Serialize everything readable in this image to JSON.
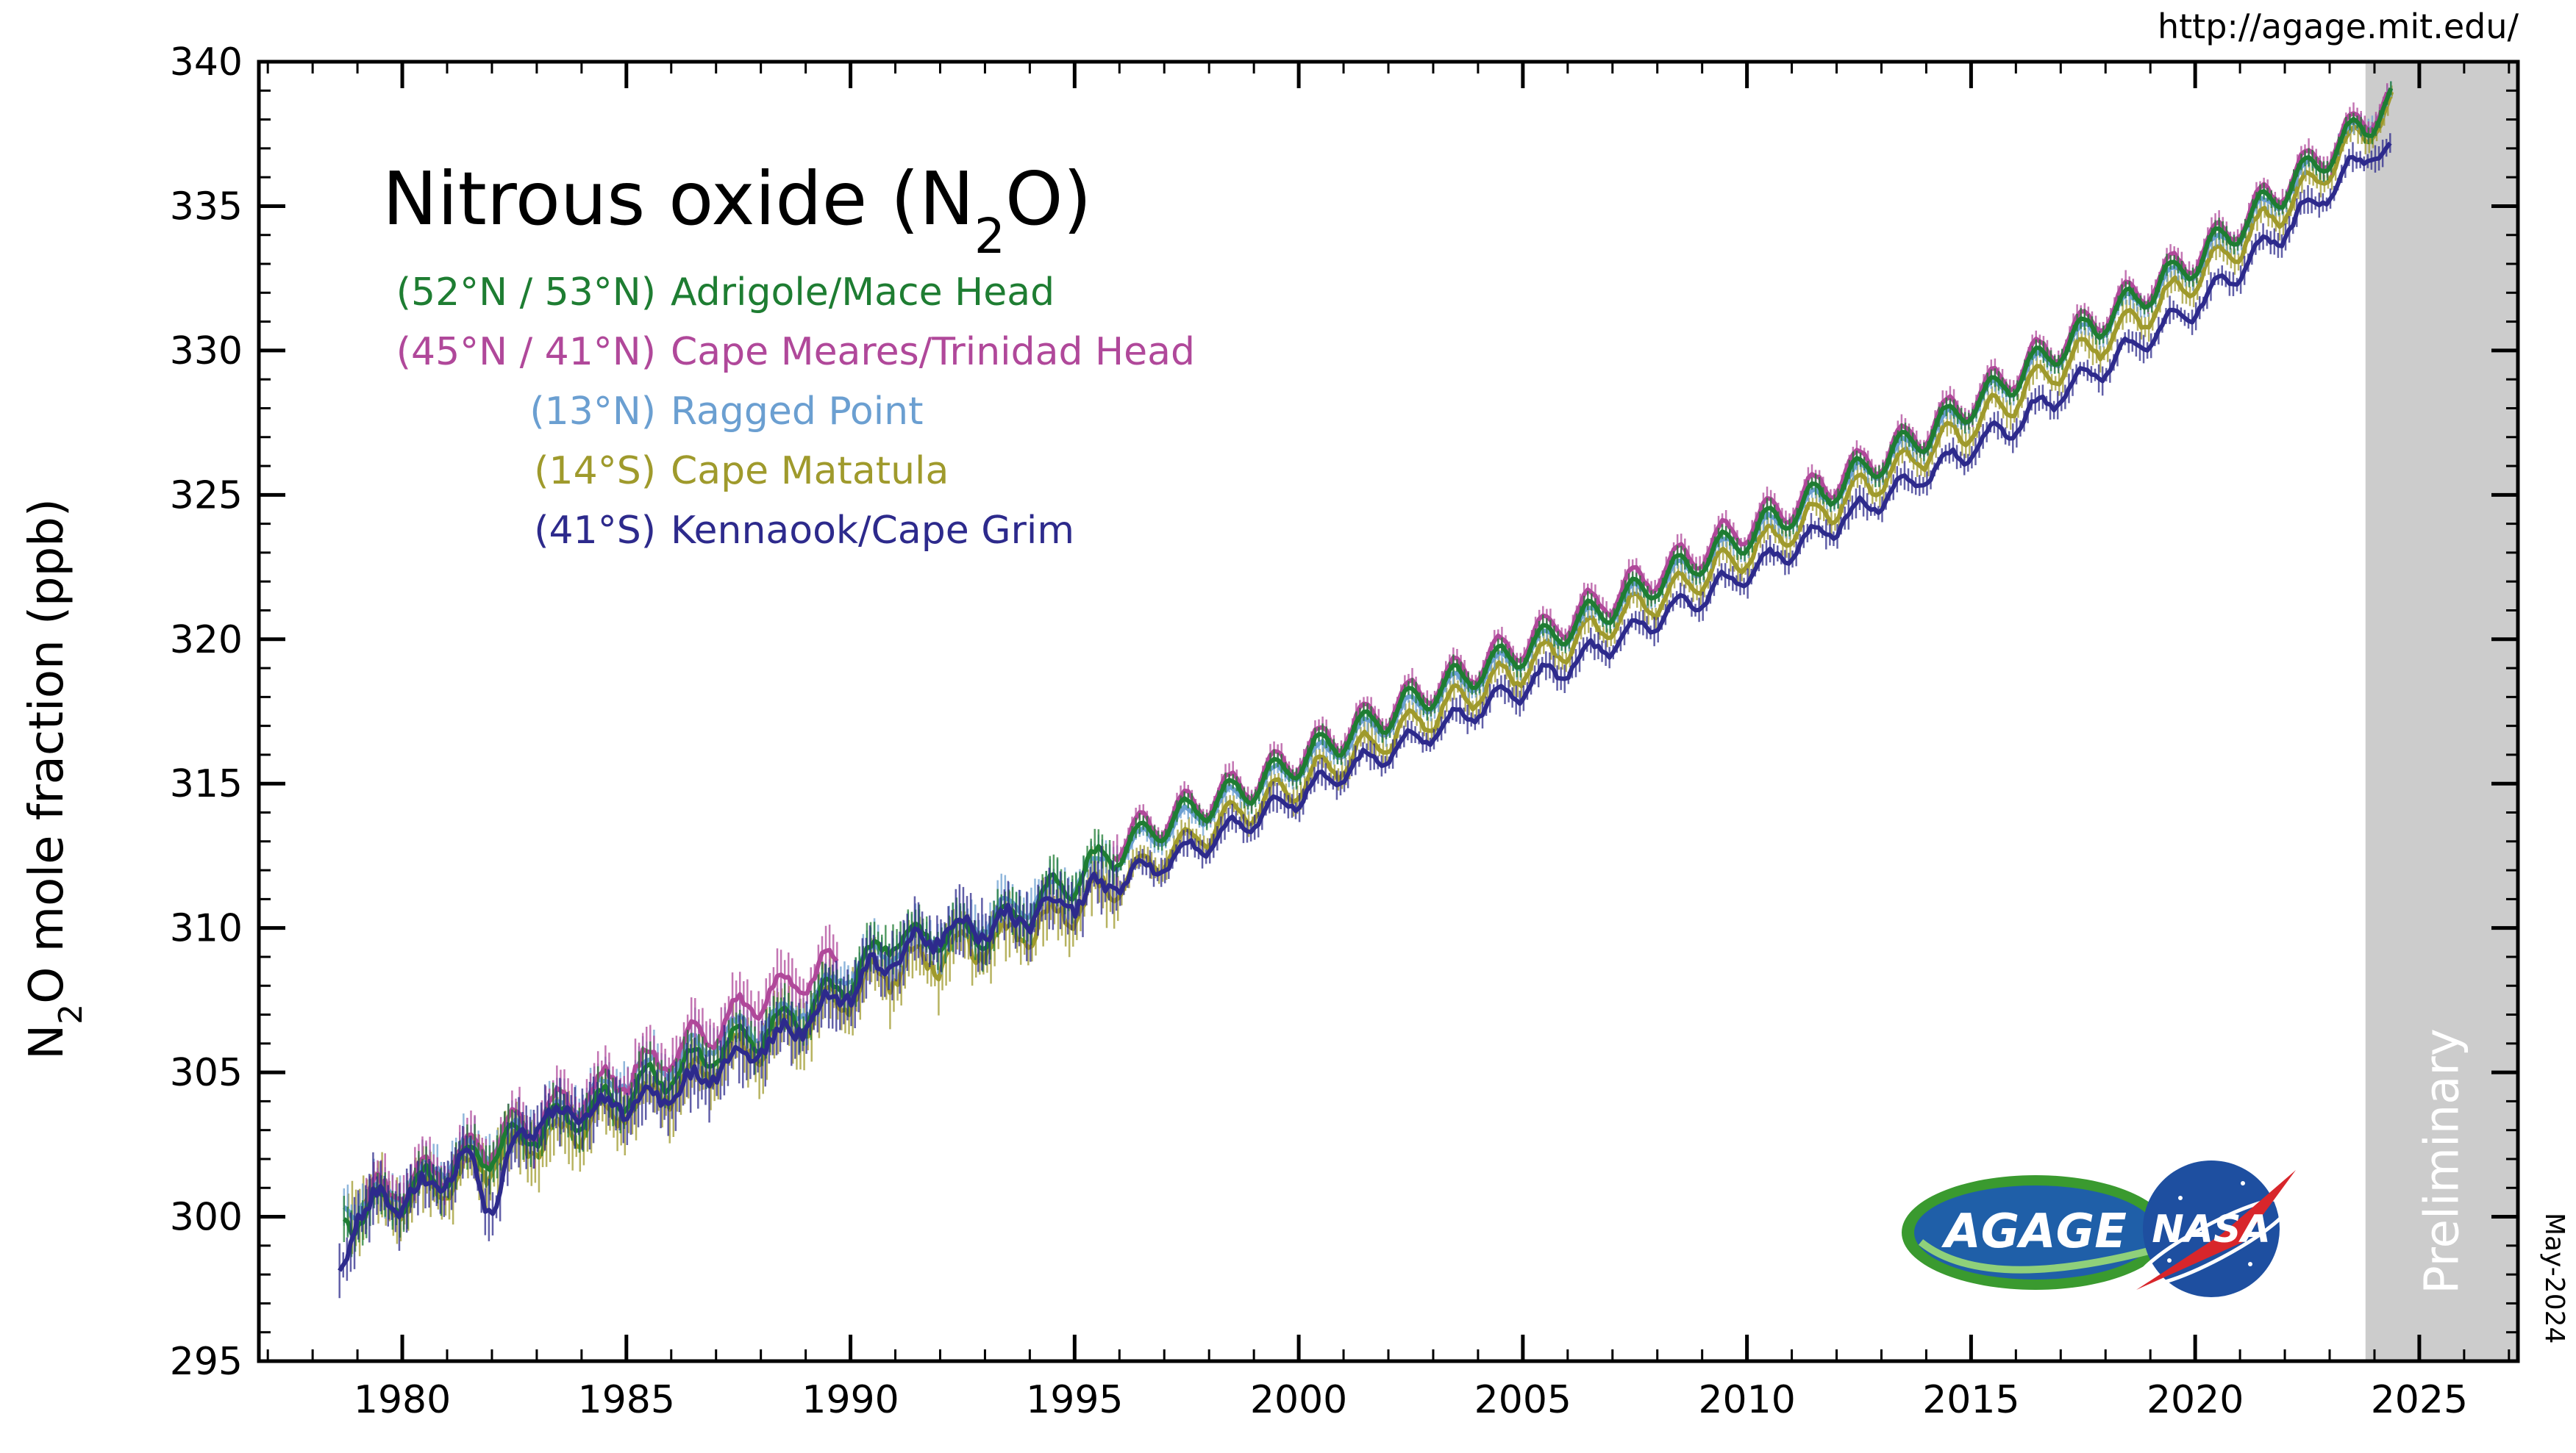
{
  "chart_data": {
    "type": "line",
    "title_main": "Nitrous oxide (N",
    "title_sub": "2",
    "title_end": "O)",
    "ylabel_main": "N",
    "ylabel_sub": "2",
    "ylabel_end": "O mole fraction (ppb)",
    "xlim": [
      1976.8,
      2027.2
    ],
    "ylim": [
      295,
      340
    ],
    "xticks": [
      1980,
      1985,
      1990,
      1995,
      2000,
      2005,
      2010,
      2015,
      2020,
      2025
    ],
    "yticks": [
      295,
      300,
      305,
      310,
      315,
      320,
      325,
      330,
      335,
      340
    ],
    "preliminary_region": {
      "start": 2023.8,
      "end": 2027.2,
      "label": "Preliminary"
    },
    "url": "http://agage.mit.edu/",
    "date_stamp": "May-2024",
    "series": [
      {
        "name": "Adrigole/Mace Head",
        "lat": "(52°N / 53°N)",
        "color": "#1e7d32",
        "start": 1978.7,
        "end": 2024.4,
        "knots": [
          [
            1978.7,
            299.9
          ],
          [
            1980,
            300.7
          ],
          [
            1981,
            301.6
          ],
          [
            1982,
            302.3
          ],
          [
            1983,
            303.0
          ],
          [
            1984,
            303.6
          ],
          [
            1985,
            304.3
          ],
          [
            1986,
            305.0
          ],
          [
            1987,
            305.7
          ],
          [
            1988,
            306.4
          ],
          [
            1989,
            307.1
          ],
          [
            1990,
            308.2
          ],
          [
            1991,
            309.8
          ],
          [
            1992,
            309.6
          ],
          [
            1993,
            309.9
          ],
          [
            1994,
            310.7
          ],
          [
            1995,
            311.7
          ],
          [
            1996,
            312.7
          ],
          [
            1997,
            313.6
          ],
          [
            1998,
            314.3
          ],
          [
            1999,
            314.9
          ],
          [
            2000,
            315.8
          ],
          [
            2001,
            316.6
          ],
          [
            2002,
            317.4
          ],
          [
            2003,
            318.2
          ],
          [
            2004,
            318.9
          ],
          [
            2005,
            319.6
          ],
          [
            2006,
            320.4
          ],
          [
            2007,
            321.2
          ],
          [
            2008,
            322.0
          ],
          [
            2009,
            322.8
          ],
          [
            2010,
            323.6
          ],
          [
            2011,
            324.4
          ],
          [
            2012,
            325.3
          ],
          [
            2013,
            326.2
          ],
          [
            2014,
            327.1
          ],
          [
            2015,
            328.1
          ],
          [
            2016,
            329.1
          ],
          [
            2017,
            330.1
          ],
          [
            2018,
            331.1
          ],
          [
            2019,
            332.1
          ],
          [
            2020,
            333.1
          ],
          [
            2021,
            334.3
          ],
          [
            2022,
            335.6
          ],
          [
            2023,
            336.8
          ],
          [
            2024,
            338.1
          ],
          [
            2024.4,
            338.6
          ]
        ],
        "amp": 0.55,
        "noise": 0.5
      },
      {
        "name": "Cape Meares/Trinidad Head",
        "lat": "(45°N / 41°N)",
        "color": "#b0489a",
        "start": 1979.2,
        "end": 2024.3,
        "knots": [
          [
            1979.2,
            300.6
          ],
          [
            1980,
            301.1
          ],
          [
            1981,
            301.8
          ],
          [
            1982,
            302.6
          ],
          [
            1983,
            303.4
          ],
          [
            1984,
            304.1
          ],
          [
            1985,
            304.9
          ],
          [
            1986,
            305.6
          ],
          [
            1987,
            306.6
          ],
          [
            1988,
            307.6
          ],
          [
            1989,
            308.2
          ],
          [
            1989.6,
            308.6
          ],
          [
            1995.9,
            312.9
          ],
          [
            1997,
            313.8
          ],
          [
            1998,
            314.5
          ],
          [
            1999,
            315.1
          ],
          [
            2000,
            316.0
          ],
          [
            2001,
            316.8
          ],
          [
            2002,
            317.6
          ],
          [
            2003,
            318.4
          ],
          [
            2004,
            319.1
          ],
          [
            2005,
            319.9
          ],
          [
            2006,
            320.7
          ],
          [
            2007,
            321.5
          ],
          [
            2008,
            322.3
          ],
          [
            2009,
            323.1
          ],
          [
            2010,
            323.9
          ],
          [
            2011,
            324.7
          ],
          [
            2012,
            325.6
          ],
          [
            2013,
            326.4
          ],
          [
            2014,
            327.3
          ],
          [
            2015,
            328.3
          ],
          [
            2016,
            329.3
          ],
          [
            2017,
            330.3
          ],
          [
            2018,
            331.3
          ],
          [
            2019,
            332.3
          ],
          [
            2020,
            333.3
          ],
          [
            2021,
            334.5
          ],
          [
            2022,
            335.8
          ],
          [
            2023,
            337.0
          ],
          [
            2024,
            338.3
          ],
          [
            2024.3,
            338.7
          ]
        ],
        "gap": [
          1989.7,
          1995.8
        ],
        "amp": 0.6,
        "noise": 0.6
      },
      {
        "name": "Ragged Point",
        "lat": "(13°N)",
        "color": "#6b9fd1",
        "start": 1978.7,
        "end": 2024.4,
        "knots": [
          [
            1978.7,
            300.3
          ],
          [
            1980,
            300.9
          ],
          [
            1981,
            302.0
          ],
          [
            1982,
            302.5
          ],
          [
            1983,
            303.2
          ],
          [
            1984,
            304.0
          ],
          [
            1985,
            304.9
          ],
          [
            1986,
            305.4
          ],
          [
            1987,
            306.1
          ],
          [
            1988,
            306.7
          ],
          [
            1989,
            307.3
          ],
          [
            1990,
            308.5
          ],
          [
            1991,
            309.3
          ],
          [
            1992,
            309.7
          ],
          [
            1993,
            310.2
          ],
          [
            1994,
            310.9
          ],
          [
            1995,
            311.6
          ],
          [
            1996,
            312.6
          ],
          [
            1997,
            313.4
          ],
          [
            1998,
            314.1
          ],
          [
            1999,
            314.8
          ],
          [
            2000,
            315.6
          ],
          [
            2001,
            316.4
          ],
          [
            2002,
            317.2
          ],
          [
            2003,
            318.0
          ],
          [
            2004,
            318.7
          ],
          [
            2005,
            319.5
          ],
          [
            2006,
            320.3
          ],
          [
            2007,
            321.1
          ],
          [
            2008,
            321.9
          ],
          [
            2009,
            322.7
          ],
          [
            2010,
            323.5
          ],
          [
            2011,
            324.3
          ],
          [
            2012,
            325.2
          ],
          [
            2013,
            326.1
          ],
          [
            2014,
            327.0
          ],
          [
            2015,
            328.0
          ],
          [
            2016,
            329.0
          ],
          [
            2017,
            330.0
          ],
          [
            2018,
            331.0
          ],
          [
            2019,
            332.0
          ],
          [
            2020,
            333.0
          ],
          [
            2021,
            334.2
          ],
          [
            2022,
            335.5
          ],
          [
            2023,
            336.8
          ],
          [
            2024,
            338.2
          ],
          [
            2024.4,
            338.7
          ]
        ],
        "amp": 0.45,
        "noise": 0.6
      },
      {
        "name": "Cape Matatula",
        "lat": "(14°S)",
        "color": "#9f9a2c",
        "start": 1978.8,
        "end": 2024.4,
        "knots": [
          [
            1978.8,
            300.4
          ],
          [
            1980,
            300.5
          ],
          [
            1981,
            301.1
          ],
          [
            1982,
            302.0
          ],
          [
            1983,
            302.7
          ],
          [
            1984,
            303.1
          ],
          [
            1985,
            303.8
          ],
          [
            1986,
            304.5
          ],
          [
            1987,
            305.3
          ],
          [
            1988,
            306.0
          ],
          [
            1989,
            306.8
          ],
          [
            1990,
            307.8
          ],
          [
            1991,
            308.6
          ],
          [
            1992,
            309.0
          ],
          [
            1993,
            309.4
          ],
          [
            1994,
            310.0
          ],
          [
            1995,
            310.8
          ],
          [
            1996,
            311.6
          ],
          [
            1997,
            312.5
          ],
          [
            1998,
            313.4
          ],
          [
            1999,
            314.2
          ],
          [
            2000,
            315.0
          ],
          [
            2001,
            315.8
          ],
          [
            2002,
            316.6
          ],
          [
            2003,
            317.4
          ],
          [
            2004,
            318.2
          ],
          [
            2005,
            319.0
          ],
          [
            2006,
            319.8
          ],
          [
            2007,
            320.6
          ],
          [
            2008,
            321.4
          ],
          [
            2009,
            322.2
          ],
          [
            2010,
            323.0
          ],
          [
            2011,
            323.8
          ],
          [
            2012,
            324.7
          ],
          [
            2013,
            325.6
          ],
          [
            2014,
            326.5
          ],
          [
            2015,
            327.4
          ],
          [
            2016,
            328.4
          ],
          [
            2017,
            329.4
          ],
          [
            2018,
            330.4
          ],
          [
            2019,
            331.4
          ],
          [
            2020,
            332.5
          ],
          [
            2021,
            333.7
          ],
          [
            2022,
            335.0
          ],
          [
            2023,
            336.4
          ],
          [
            2024,
            337.9
          ],
          [
            2024.4,
            338.4
          ]
        ],
        "amp": 0.55,
        "noise": 0.9
      },
      {
        "name": "Kennaook/Cape Grim",
        "lat": "(41°S)",
        "color": "#2d2a8c",
        "start": 1978.6,
        "end": 2024.4,
        "knots": [
          [
            1978.6,
            297.8
          ],
          [
            1979,
            300.3
          ],
          [
            1980,
            300.6
          ],
          [
            1981,
            301.4
          ],
          [
            1981.5,
            302.1
          ],
          [
            1982,
            300.2
          ],
          [
            1982.5,
            302.6
          ],
          [
            1983,
            303.3
          ],
          [
            1984,
            303.6
          ],
          [
            1985,
            304.0
          ],
          [
            1986,
            304.3
          ],
          [
            1987,
            305.1
          ],
          [
            1988,
            305.9
          ],
          [
            1989,
            306.7
          ],
          [
            1990,
            307.9
          ],
          [
            1991,
            309.1
          ],
          [
            1992,
            309.8
          ],
          [
            1993,
            310.0
          ],
          [
            1994,
            310.4
          ],
          [
            1995,
            311.0
          ],
          [
            1996,
            311.6
          ],
          [
            1997,
            312.3
          ],
          [
            1998,
            313.0
          ],
          [
            1999,
            313.8
          ],
          [
            2000,
            314.6
          ],
          [
            2001,
            315.4
          ],
          [
            2002,
            316.1
          ],
          [
            2003,
            316.8
          ],
          [
            2004,
            317.6
          ],
          [
            2005,
            318.3
          ],
          [
            2006,
            319.1
          ],
          [
            2007,
            319.9
          ],
          [
            2008,
            320.7
          ],
          [
            2009,
            321.5
          ],
          [
            2010,
            322.3
          ],
          [
            2011,
            323.1
          ],
          [
            2012,
            324.0
          ],
          [
            2013,
            324.9
          ],
          [
            2014,
            325.7
          ],
          [
            2015,
            326.6
          ],
          [
            2016,
            327.5
          ],
          [
            2017,
            328.5
          ],
          [
            2018,
            329.5
          ],
          [
            2019,
            330.5
          ],
          [
            2020,
            331.5
          ],
          [
            2021,
            332.8
          ],
          [
            2022,
            334.2
          ],
          [
            2023,
            335.6
          ],
          [
            2024,
            337.0
          ],
          [
            2024.4,
            336.8
          ]
        ],
        "amp": 0.4,
        "noise": 0.9
      }
    ]
  },
  "logos": {
    "agage": "AGAGE",
    "nasa": "NASA"
  }
}
